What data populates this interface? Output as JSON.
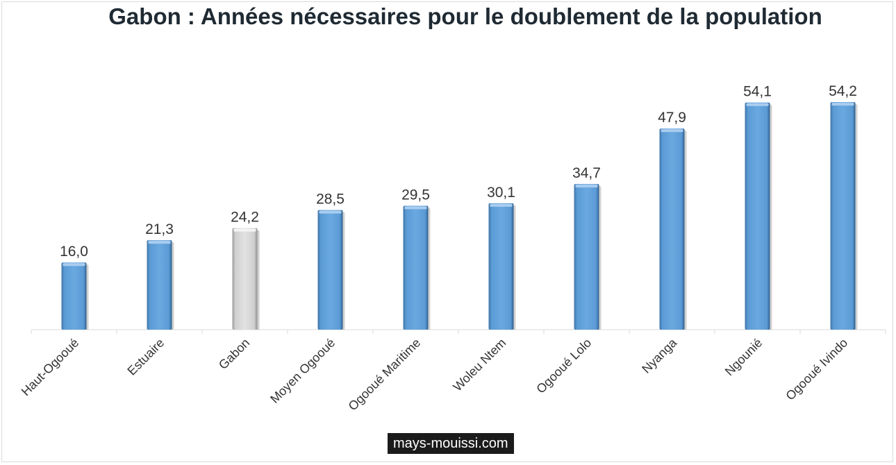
{
  "title": "Gabon : Années nécessaires pour le doublement de la population",
  "watermark": "mays-mouissi.com",
  "colors": {
    "bar": "#5b9bd5",
    "bar_highlight": "#d4d4d4",
    "axis": "#d9d9d9",
    "text": "#333333"
  },
  "chart_data": {
    "type": "bar",
    "title": "Gabon : Années nécessaires pour le doublement de la population",
    "categories": [
      "Haut-Ogooué",
      "Estuaire",
      "Gabon",
      "Moyen Ogooué",
      "Ogooué Maritime",
      "Woleu Ntem",
      "Ogooué Lolo",
      "Nyanga",
      "Ngounié",
      "Ogooué Ivindo"
    ],
    "values": [
      16.0,
      21.3,
      24.2,
      28.5,
      29.5,
      30.1,
      34.7,
      47.9,
      54.1,
      54.2
    ],
    "data_labels": [
      "16,0",
      "21,3",
      "24,2",
      "28,5",
      "29,5",
      "30,1",
      "34,7",
      "47,9",
      "54,1",
      "54,2"
    ],
    "highlight_category": "Gabon",
    "xlabel": "",
    "ylabel": "",
    "ylim": [
      0,
      60
    ],
    "grid": false,
    "legend": false
  }
}
